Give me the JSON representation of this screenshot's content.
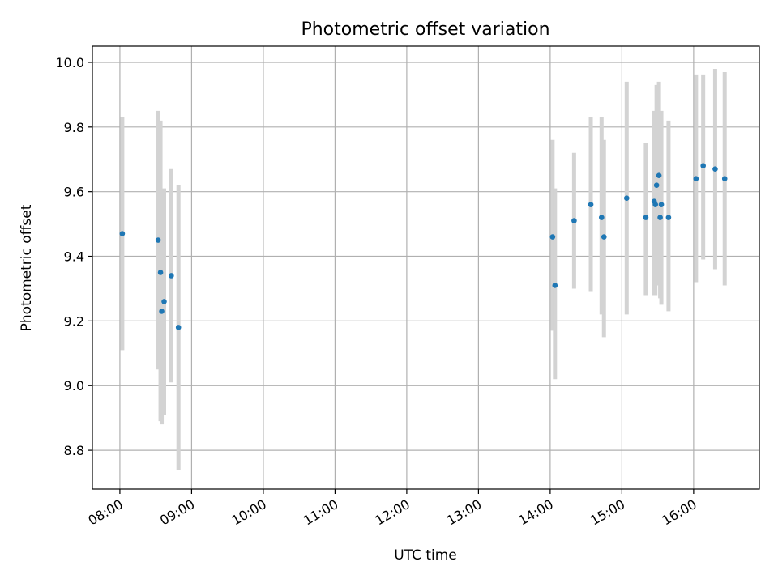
{
  "chart_data": {
    "type": "scatter",
    "title": "Photometric offset variation",
    "xlabel": "UTC time",
    "ylabel": "Photometric offset",
    "xlim": [
      "07:37",
      "16:55"
    ],
    "ylim": [
      8.68,
      10.05
    ],
    "x_ticks": [
      "08:00",
      "09:00",
      "10:00",
      "11:00",
      "12:00",
      "13:00",
      "14:00",
      "15:00",
      "16:00"
    ],
    "y_ticks": [
      "8.8",
      "9.0",
      "9.2",
      "9.4",
      "9.6",
      "9.8",
      "10.0"
    ],
    "grid": true,
    "point_color": "#1f77b4",
    "errorbar_color": "#d3d3d3",
    "points": [
      {
        "t": "08:02",
        "y": 9.47,
        "lo": 9.11,
        "hi": 9.83
      },
      {
        "t": "08:32",
        "y": 9.45,
        "lo": 9.05,
        "hi": 9.85
      },
      {
        "t": "08:34",
        "y": 9.35,
        "lo": 8.89,
        "hi": 9.82
      },
      {
        "t": "08:35",
        "y": 9.23,
        "lo": 8.88,
        "hi": 9.58
      },
      {
        "t": "08:37",
        "y": 9.26,
        "lo": 8.91,
        "hi": 9.61
      },
      {
        "t": "08:43",
        "y": 9.34,
        "lo": 9.01,
        "hi": 9.67
      },
      {
        "t": "08:49",
        "y": 9.18,
        "lo": 8.74,
        "hi": 9.62
      },
      {
        "t": "14:02",
        "y": 9.46,
        "lo": 9.17,
        "hi": 9.76
      },
      {
        "t": "14:04",
        "y": 9.31,
        "lo": 9.02,
        "hi": 9.61
      },
      {
        "t": "14:20",
        "y": 9.51,
        "lo": 9.3,
        "hi": 9.72
      },
      {
        "t": "14:34",
        "y": 9.56,
        "lo": 9.29,
        "hi": 9.83
      },
      {
        "t": "14:43",
        "y": 9.52,
        "lo": 9.22,
        "hi": 9.83
      },
      {
        "t": "14:45",
        "y": 9.46,
        "lo": 9.15,
        "hi": 9.76
      },
      {
        "t": "15:04",
        "y": 9.58,
        "lo": 9.22,
        "hi": 9.94
      },
      {
        "t": "15:20",
        "y": 9.52,
        "lo": 9.28,
        "hi": 9.75
      },
      {
        "t": "15:27",
        "y": 9.57,
        "lo": 9.28,
        "hi": 9.85
      },
      {
        "t": "15:28",
        "y": 9.56,
        "lo": 9.28,
        "hi": 9.84
      },
      {
        "t": "15:29",
        "y": 9.62,
        "lo": 9.31,
        "hi": 9.93
      },
      {
        "t": "15:31",
        "y": 9.65,
        "lo": 9.36,
        "hi": 9.94
      },
      {
        "t": "15:32",
        "y": 9.52,
        "lo": 9.27,
        "hi": 9.78
      },
      {
        "t": "15:33",
        "y": 9.56,
        "lo": 9.25,
        "hi": 9.85
      },
      {
        "t": "15:39",
        "y": 9.52,
        "lo": 9.23,
        "hi": 9.82
      },
      {
        "t": "16:02",
        "y": 9.64,
        "lo": 9.32,
        "hi": 9.96
      },
      {
        "t": "16:08",
        "y": 9.68,
        "lo": 9.39,
        "hi": 9.96
      },
      {
        "t": "16:18",
        "y": 9.67,
        "lo": 9.36,
        "hi": 9.98
      },
      {
        "t": "16:26",
        "y": 9.64,
        "lo": 9.31,
        "hi": 9.97
      }
    ]
  }
}
